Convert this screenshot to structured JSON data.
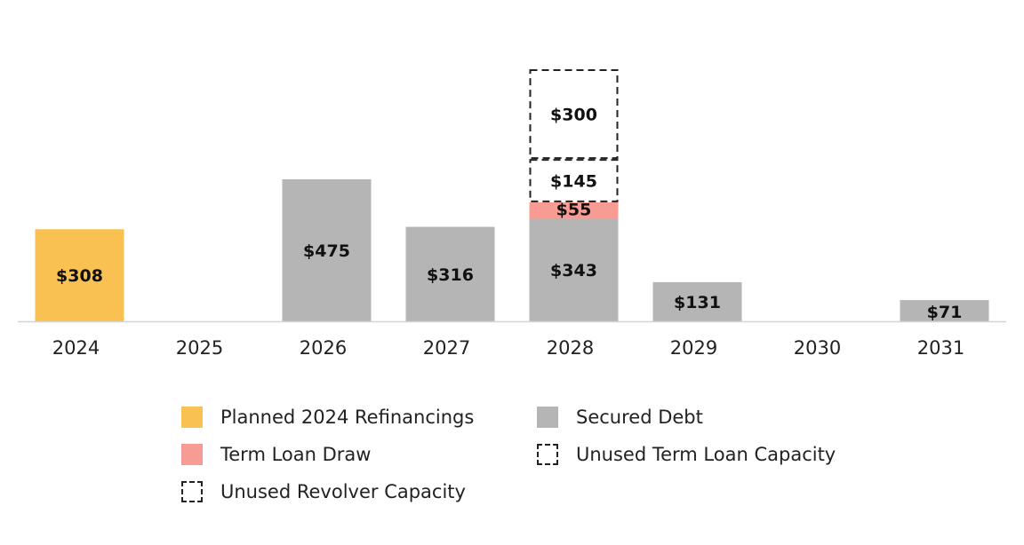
{
  "chart_data": {
    "type": "bar",
    "stacked": true,
    "categories": [
      "2024",
      "2025",
      "2026",
      "2027",
      "2028",
      "2029",
      "2030",
      "2031"
    ],
    "series": [
      {
        "name": "Planned 2024 Refinancings",
        "color": "#f8c152",
        "style": "solid",
        "values": [
          308,
          0,
          0,
          0,
          0,
          0,
          0,
          0
        ],
        "labels": [
          "$308",
          "",
          "",
          "",
          "",
          "",
          "",
          ""
        ]
      },
      {
        "name": "Secured Debt",
        "color": "#b5b5b5",
        "style": "solid",
        "values": [
          0,
          0,
          475,
          316,
          343,
          131,
          0,
          71
        ],
        "labels": [
          "",
          "",
          "$475",
          "$316",
          "$343",
          "$131",
          "",
          "$71"
        ]
      },
      {
        "name": "Term Loan Draw",
        "color": "#f89c93",
        "style": "solid",
        "values": [
          0,
          0,
          0,
          0,
          55,
          0,
          0,
          0
        ],
        "labels": [
          "",
          "",
          "",
          "",
          "$55",
          "",
          "",
          ""
        ]
      },
      {
        "name": "Unused Term Loan Capacity",
        "color": "#222222",
        "style": "dashed",
        "values": [
          0,
          0,
          0,
          0,
          145,
          0,
          0,
          0
        ],
        "labels": [
          "",
          "",
          "",
          "",
          "$145",
          "",
          "",
          ""
        ]
      },
      {
        "name": "Unused Revolver Capacity",
        "color": "#222222",
        "style": "dashed",
        "values": [
          0,
          0,
          0,
          0,
          300,
          0,
          0,
          0
        ],
        "labels": [
          "",
          "",
          "",
          "",
          "$300",
          "",
          "",
          ""
        ]
      }
    ],
    "legend_order": [
      "Planned 2024 Refinancings",
      "Secured Debt",
      "Term Loan Draw",
      "Unused Term Loan Capacity",
      "Unused Revolver Capacity"
    ],
    "legend_position": "bottom",
    "title": "",
    "xlabel": "",
    "ylabel": "",
    "y_axis_visible": false,
    "grid": false,
    "ylim": [
      0,
      900
    ]
  }
}
